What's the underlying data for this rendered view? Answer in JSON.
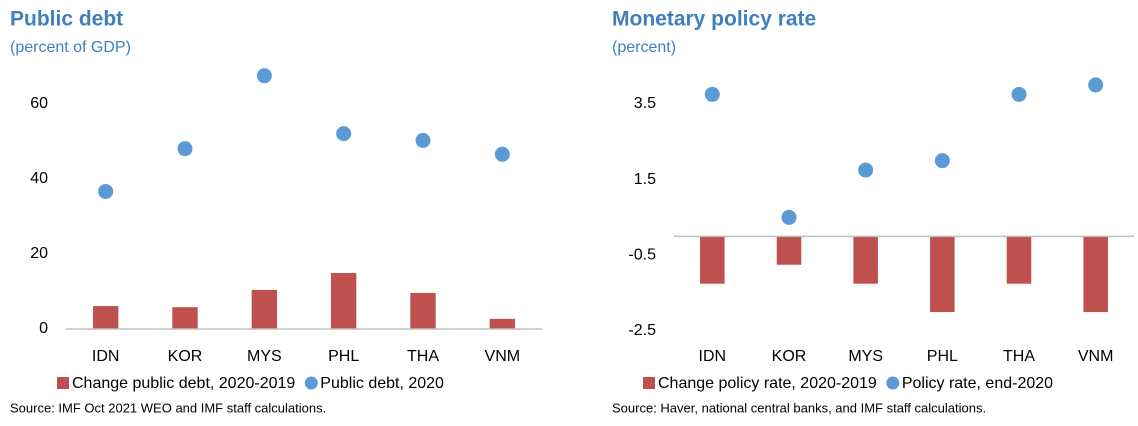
{
  "chart_data": [
    {
      "type": "combo",
      "title": "Public debt",
      "subtitle": "(percent of GDP)",
      "categories": [
        "IDN",
        "KOR",
        "MYS",
        "PHL",
        "THA",
        "VNM"
      ],
      "series": [
        {
          "name": "Change public debt, 2020-2019",
          "kind": "bar",
          "color": "#c0504d",
          "values": [
            6.1,
            5.8,
            10.4,
            14.9,
            9.6,
            2.7
          ]
        },
        {
          "name": "Public debt, 2020",
          "kind": "dot",
          "color": "#5b9bd5",
          "values": [
            36.6,
            48.0,
            67.4,
            52.0,
            50.2,
            46.5
          ]
        }
      ],
      "ylim": [
        0,
        70
      ],
      "yticks": [
        0,
        20,
        40,
        60
      ],
      "source": "Source: IMF Oct 2021 WEO and IMF staff calculations."
    },
    {
      "type": "combo",
      "title": "Monetary policy rate",
      "subtitle": "(percent)",
      "categories": [
        "IDN",
        "KOR",
        "MYS",
        "PHL",
        "THA",
        "VNM"
      ],
      "series": [
        {
          "name": "Change policy rate, 2020-2019",
          "kind": "bar",
          "color": "#c0504d",
          "values": [
            -1.25,
            -0.75,
            -1.25,
            -2.0,
            -1.25,
            -2.0
          ]
        },
        {
          "name": "Policy rate, end-2020",
          "kind": "dot",
          "color": "#5b9bd5",
          "values": [
            3.75,
            0.5,
            1.75,
            2.0,
            3.75,
            4.0
          ]
        }
      ],
      "ylim": [
        -2.5,
        4.5
      ],
      "yticks": [
        -2.5,
        -0.5,
        1.5,
        3.5
      ],
      "source": "Source: Haver, national central banks, and IMF staff calculations."
    }
  ]
}
